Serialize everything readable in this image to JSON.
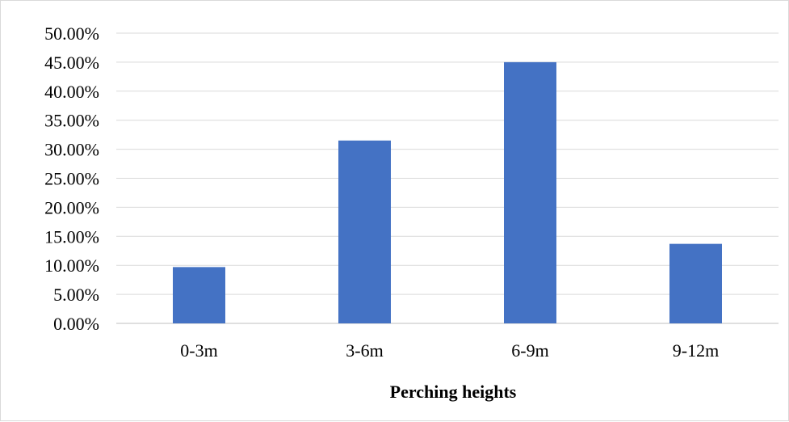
{
  "chart_data": {
    "type": "bar",
    "title": "",
    "xlabel": "Perching heights",
    "ylabel": "",
    "categories": [
      "0-3m",
      "3-6m",
      "6-9m",
      "9-12m"
    ],
    "values": [
      9.7,
      31.5,
      45.0,
      13.7
    ],
    "ylim": [
      0,
      50
    ],
    "yticks": [
      0,
      5,
      10,
      15,
      20,
      25,
      30,
      35,
      40,
      45,
      50
    ],
    "ytick_labels": [
      "0.00%",
      "5.00%",
      "10.00%",
      "15.00%",
      "20.00%",
      "25.00%",
      "30.00%",
      "35.00%",
      "40.00%",
      "45.00%",
      "50.00%"
    ],
    "bar_color": "#4472C4",
    "grid": true,
    "legend": "none"
  }
}
